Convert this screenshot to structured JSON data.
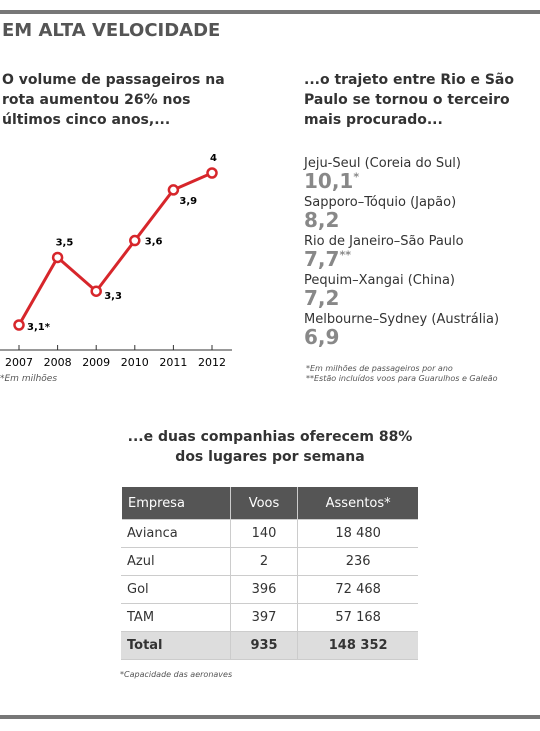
{
  "title": "EM ALTA VELOCIDADE",
  "chart_data": {
    "type": "line",
    "subtitle": "O volume de passageiros na rota aumentou 26% nos últimos cinco anos,...",
    "categories": [
      "2007",
      "2008",
      "2009",
      "2010",
      "2011",
      "2012"
    ],
    "series": [
      {
        "color": "#d7262b",
        "values": [
          3.1,
          3.5,
          3.3,
          3.6,
          3.9,
          4
        ],
        "value_labels": [
          "3,1*",
          "3,5",
          "3,3",
          "3,6",
          "3,9",
          "4"
        ]
      }
    ],
    "note": "*Em milhões"
  },
  "ranking": {
    "subtitle": "...o trajeto entre Rio e São Paulo se tornou o terceiro mais procurado...",
    "items": [
      {
        "name": "Jeju-Seul (Coreia do Sul)",
        "value": "10,1",
        "note": "*"
      },
      {
        "name": "Sapporo–Tóquio (Japão)",
        "value": "8,2"
      },
      {
        "name": "Rio de Janeiro–São Paulo",
        "value": "7,7",
        "note": "**"
      },
      {
        "name": "Pequim–Xangai (China)",
        "value": "7,2"
      },
      {
        "name": "Melbourne–Sydney (Austrália)",
        "value": "6,9"
      }
    ],
    "notes": [
      "*Em milhões de passageiros por ano",
      "**Estão incluídos voos para Guarulhos e Galeão"
    ]
  },
  "table": {
    "subtitle": "...e duas companhias oferecem 88% dos lugares por semana",
    "header": [
      "Empresa",
      "Voos",
      "Assentos*"
    ],
    "rows": [
      [
        "Avianca",
        "140",
        "18 480"
      ],
      [
        "Azul",
        "2",
        "236"
      ],
      [
        "Gol",
        "396",
        "72 468"
      ],
      [
        "TAM",
        "397",
        "57 168"
      ],
      [
        "Total",
        "935",
        "148 352"
      ]
    ],
    "note": "*Capacidade das aeronaves"
  }
}
